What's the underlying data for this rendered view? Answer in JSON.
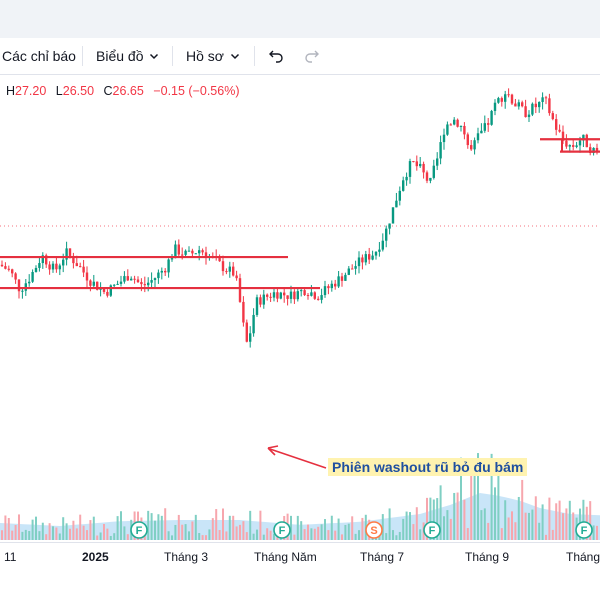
{
  "toolbar": {
    "indicators_label": "Các chỉ báo",
    "chart_label": "Biểu đồ",
    "profile_label": "Hồ sơ"
  },
  "legend": {
    "h_label": "H",
    "h_value": "27.20",
    "l_label": "L",
    "l_value": "26.50",
    "c_label": "C",
    "c_value": "26.65",
    "change": "−0.15 (−0.56%)"
  },
  "annotation": {
    "text": "Phiên washout rũ bỏ đu bám"
  },
  "x_axis": {
    "labels": [
      "11",
      "2025",
      "Tháng 3",
      "Tháng Năm",
      "Tháng 7",
      "Tháng 9",
      "Tháng"
    ]
  },
  "event_markers": [
    {
      "letter": "F",
      "color": "#22ab94"
    },
    {
      "letter": "F",
      "color": "#22ab94"
    },
    {
      "letter": "S",
      "color": "#ff7a45"
    },
    {
      "letter": "F",
      "color": "#22ab94"
    },
    {
      "letter": "F",
      "color": "#22ab94"
    }
  ],
  "colors": {
    "up": "#089981",
    "down": "#f23645",
    "volume_up": "#7fcfc3",
    "volume_down": "#f7a6ad",
    "volume_area": "#9ccff2",
    "trend_line": "#e5303f"
  },
  "chart_data": {
    "type": "candlestick",
    "xlabel": "",
    "ylabel": "",
    "grid": false,
    "price_path": [
      [
        0,
        0.52
      ],
      [
        10,
        0.5
      ],
      [
        20,
        0.44
      ],
      [
        30,
        0.48
      ],
      [
        42,
        0.55
      ],
      [
        55,
        0.5
      ],
      [
        66,
        0.56
      ],
      [
        78,
        0.52
      ],
      [
        90,
        0.47
      ],
      [
        105,
        0.43
      ],
      [
        118,
        0.46
      ],
      [
        130,
        0.49
      ],
      [
        142,
        0.45
      ],
      [
        152,
        0.47
      ],
      [
        165,
        0.51
      ],
      [
        175,
        0.57
      ],
      [
        188,
        0.55
      ],
      [
        200,
        0.57
      ],
      [
        212,
        0.54
      ],
      [
        224,
        0.51
      ],
      [
        235,
        0.49
      ],
      [
        241,
        0.38
      ],
      [
        246,
        0.26
      ],
      [
        250,
        0.3
      ],
      [
        256,
        0.4
      ],
      [
        262,
        0.41
      ],
      [
        275,
        0.43
      ],
      [
        290,
        0.42
      ],
      [
        305,
        0.44
      ],
      [
        318,
        0.42
      ],
      [
        330,
        0.45
      ],
      [
        345,
        0.49
      ],
      [
        360,
        0.53
      ],
      [
        375,
        0.56
      ],
      [
        385,
        0.62
      ],
      [
        395,
        0.72
      ],
      [
        403,
        0.8
      ],
      [
        412,
        0.85
      ],
      [
        420,
        0.83
      ],
      [
        430,
        0.78
      ],
      [
        438,
        0.87
      ],
      [
        445,
        0.97
      ],
      [
        455,
        0.99
      ],
      [
        463,
        0.96
      ],
      [
        470,
        0.88
      ],
      [
        478,
        0.93
      ],
      [
        487,
        0.97
      ],
      [
        496,
        1.04
      ],
      [
        506,
        1.08
      ],
      [
        515,
        1.04
      ],
      [
        525,
        1.01
      ],
      [
        535,
        1.03
      ],
      [
        545,
        1.05
      ],
      [
        555,
        0.97
      ],
      [
        563,
        0.92
      ],
      [
        572,
        0.9
      ],
      [
        582,
        0.93
      ],
      [
        592,
        0.89
      ],
      [
        600,
        0.88
      ]
    ],
    "volume_level_path": [
      [
        0,
        0.25
      ],
      [
        60,
        0.2
      ],
      [
        120,
        0.28
      ],
      [
        180,
        0.3
      ],
      [
        240,
        0.3
      ],
      [
        300,
        0.22
      ],
      [
        360,
        0.27
      ],
      [
        420,
        0.4
      ],
      [
        450,
        0.55
      ],
      [
        480,
        0.75
      ],
      [
        500,
        0.7
      ],
      [
        520,
        0.62
      ],
      [
        540,
        0.5
      ],
      [
        570,
        0.4
      ],
      [
        600,
        0.38
      ]
    ],
    "trend_lines": [
      {
        "from": [
          0,
          0.545
        ],
        "to": [
          288,
          0.545
        ]
      },
      {
        "from": [
          0,
          0.445
        ],
        "to": [
          320,
          0.445
        ]
      },
      {
        "from": [
          540,
          0.925
        ],
        "to": [
          600,
          0.925
        ]
      },
      {
        "from": [
          560,
          0.885
        ],
        "to": [
          600,
          0.885
        ]
      }
    ]
  }
}
